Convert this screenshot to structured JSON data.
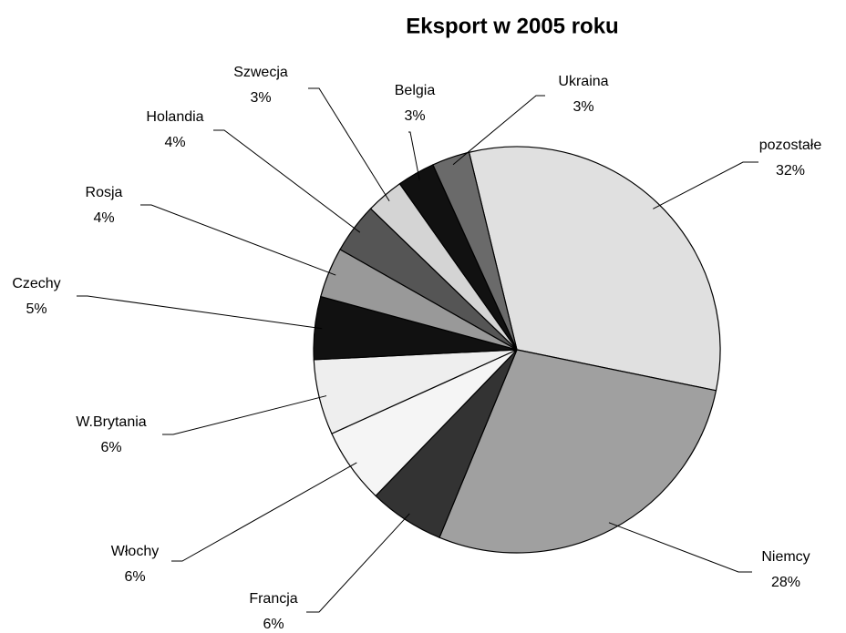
{
  "chart_data": {
    "type": "pie",
    "title": "Eksport w 2005 roku",
    "categories": [
      "pozostałe",
      "Niemcy",
      "Francja",
      "Włochy",
      "W.Brytania",
      "Czechy",
      "Rosja",
      "Holandia",
      "Szwecja",
      "Belgia",
      "Ukraina"
    ],
    "values": [
      32,
      28,
      6,
      6,
      6,
      5,
      4,
      4,
      3,
      3,
      3
    ],
    "value_labels": [
      "32%",
      "28%",
      "6%",
      "6%",
      "6%",
      "5%",
      "4%",
      "4%",
      "3%",
      "3%",
      "3%"
    ],
    "colors": [
      "#e0e0e0",
      "#a0a0a0",
      "#333333",
      "#f5f5f5",
      "#eeeeee",
      "#111111",
      "#999999",
      "#555555",
      "#d4d4d4",
      "#111111",
      "#6a6a6a"
    ]
  }
}
